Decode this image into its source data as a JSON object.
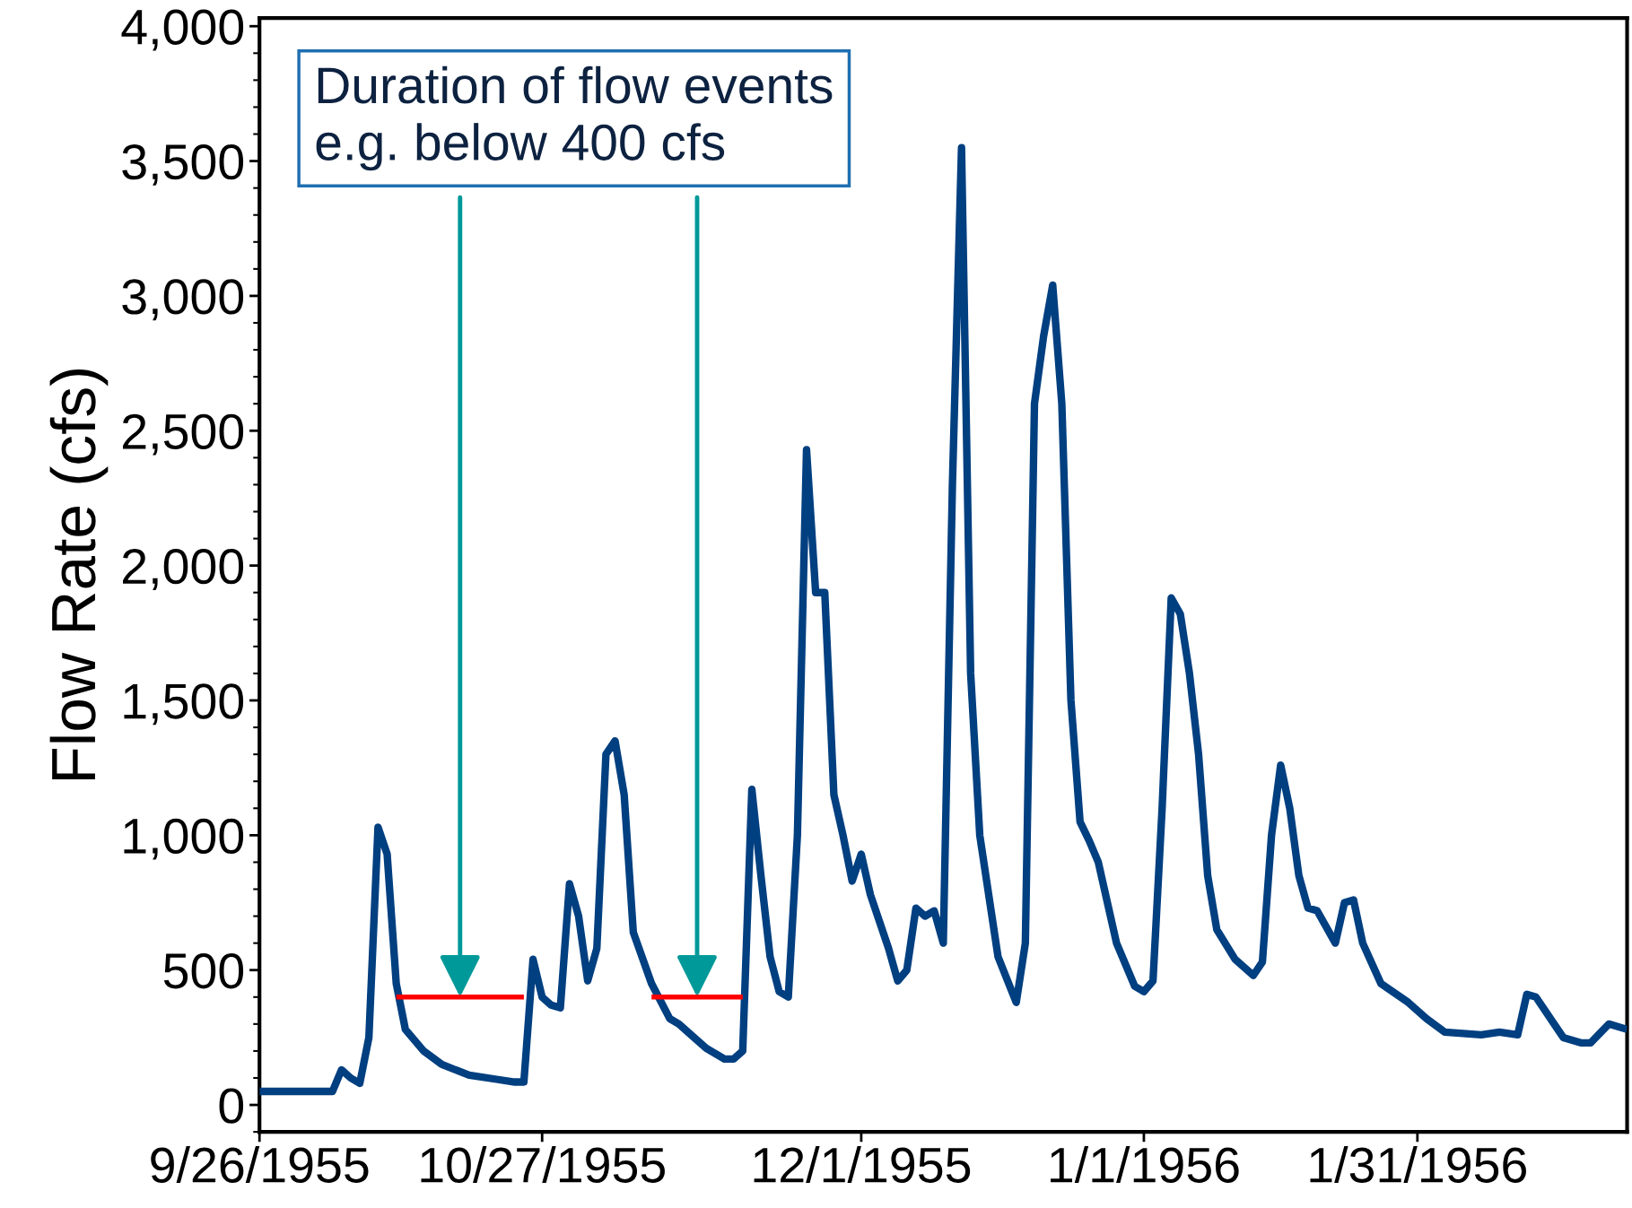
{
  "chart_data": {
    "type": "line",
    "ylabel": "Flow Rate (cfs)",
    "xlim": [
      "1955-09-26",
      "1956-02-23"
    ],
    "xticks": [
      {
        "value": "1955-09-26",
        "label": "9/26/1955"
      },
      {
        "value": "1955-10-27",
        "label": "10/27/1955"
      },
      {
        "value": "1955-12-01",
        "label": "12/1/1955"
      },
      {
        "value": "1956-01-01",
        "label": "1/1/1956"
      },
      {
        "value": "1956-01-31",
        "label": "1/31/1956"
      }
    ],
    "ylim": [
      -100,
      4030
    ],
    "yticks": [
      {
        "value": 0,
        "label": "0"
      },
      {
        "value": 500,
        "label": "500"
      },
      {
        "value": 1000,
        "label": "1,000"
      },
      {
        "value": 1500,
        "label": "1,500"
      },
      {
        "value": 2000,
        "label": "2,000"
      },
      {
        "value": 2500,
        "label": "2,500"
      },
      {
        "value": 3000,
        "label": "3,000"
      },
      {
        "value": 3500,
        "label": "3,500"
      },
      {
        "value": 4000,
        "label": "4,000"
      }
    ],
    "grid": false,
    "legend": false,
    "marker": "none",
    "line_style": "solid",
    "series": [
      {
        "color": "#003f80",
        "x": [
          "1955-09-26",
          "1955-10-04",
          "1955-10-05",
          "1955-10-06",
          "1955-10-07",
          "1955-10-08",
          "1955-10-09",
          "1955-10-10",
          "1955-10-11",
          "1955-10-12",
          "1955-10-14",
          "1955-10-16",
          "1955-10-19",
          "1955-10-22",
          "1955-10-24",
          "1955-10-25",
          "1955-10-26",
          "1955-10-27",
          "1955-10-28",
          "1955-10-29",
          "1955-10-30",
          "1955-10-31",
          "1955-11-01",
          "1955-11-02",
          "1955-11-03",
          "1955-11-04",
          "1955-11-05",
          "1955-11-06",
          "1955-11-08",
          "1955-11-10",
          "1955-11-11",
          "1955-11-14",
          "1955-11-16",
          "1955-11-17",
          "1955-11-18",
          "1955-11-19",
          "1955-11-20",
          "1955-11-21",
          "1955-11-22",
          "1955-11-23",
          "1955-11-24",
          "1955-11-25",
          "1955-11-26",
          "1955-11-27",
          "1955-11-28",
          "1955-11-29",
          "1955-11-30",
          "1955-12-01",
          "1955-12-02",
          "1955-12-04",
          "1955-12-05",
          "1955-12-06",
          "1955-12-07",
          "1955-12-08",
          "1955-12-09",
          "1955-12-10",
          "1955-12-11",
          "1955-12-12",
          "1955-12-13",
          "1955-12-14",
          "1955-12-16",
          "1955-12-18",
          "1955-12-19",
          "1955-12-20",
          "1955-12-21",
          "1955-12-22",
          "1955-12-23",
          "1955-12-24",
          "1955-12-25",
          "1955-12-26",
          "1955-12-27",
          "1955-12-29",
          "1955-12-31",
          "1956-01-01",
          "1956-01-02",
          "1956-01-03",
          "1956-01-04",
          "1956-01-05",
          "1956-01-06",
          "1956-01-07",
          "1956-01-08",
          "1956-01-09",
          "1956-01-11",
          "1956-01-13",
          "1956-01-14",
          "1956-01-15",
          "1956-01-16",
          "1956-01-17",
          "1956-01-18",
          "1956-01-19",
          "1956-01-20",
          "1956-01-22",
          "1956-01-23",
          "1956-01-24",
          "1956-01-25",
          "1956-01-27",
          "1956-01-30",
          "1956-02-01",
          "1956-02-03",
          "1956-02-07",
          "1956-02-09",
          "1956-02-11",
          "1956-02-12",
          "1956-02-13",
          "1956-02-15",
          "1956-02-16",
          "1956-02-18",
          "1956-02-19",
          "1956-02-21",
          "1956-02-23"
        ],
        "values": [
          50,
          50,
          130,
          100,
          80,
          250,
          1030,
          930,
          450,
          280,
          200,
          150,
          110,
          95,
          85,
          85,
          540,
          400,
          370,
          360,
          820,
          700,
          460,
          580,
          1300,
          1350,
          1150,
          640,
          450,
          320,
          300,
          210,
          170,
          170,
          200,
          1170,
          850,
          550,
          420,
          400,
          1000,
          2430,
          1900,
          1900,
          1150,
          1000,
          830,
          930,
          780,
          580,
          460,
          500,
          730,
          700,
          720,
          600,
          2300,
          3550,
          1600,
          1000,
          550,
          380,
          600,
          2600,
          2850,
          3040,
          2600,
          1500,
          1050,
          980,
          900,
          600,
          440,
          420,
          460,
          1100,
          1880,
          1820,
          1600,
          1300,
          850,
          650,
          540,
          480,
          530,
          1000,
          1260,
          1100,
          850,
          730,
          720,
          600,
          750,
          760,
          600,
          450,
          380,
          320,
          270,
          260,
          270,
          260,
          410,
          400,
          300,
          250,
          230,
          230,
          300,
          280
        ]
      },
      {
        "color": "#ff0000",
        "x": [
          "1955-10-11",
          "1955-10-25"
        ],
        "values": [
          400,
          400
        ]
      },
      {
        "color": "#ff0000",
        "x": [
          "1955-11-08",
          "1955-11-18"
        ],
        "values": [
          400,
          400
        ]
      }
    ],
    "annotations": [
      "Duration of flow events\ne.g. below 400 cfs"
    ]
  }
}
